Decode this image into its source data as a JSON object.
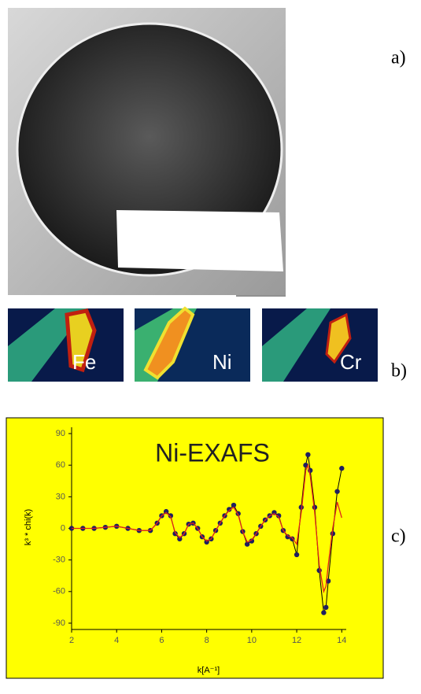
{
  "panel_labels": {
    "a": "a)",
    "b": "b)",
    "c": "c)"
  },
  "maps": [
    "Fe",
    "Ni",
    "Cr"
  ],
  "chart_data": {
    "type": "line",
    "title": "Ni-EXAFS",
    "ylabel": "k³ * chi(k)",
    "xlabel": "k[A⁻¹]",
    "x": [
      2,
      2.5,
      3,
      3.5,
      4,
      4.5,
      5,
      5.5,
      5.8,
      6,
      6.2,
      6.4,
      6.6,
      6.8,
      7,
      7.2,
      7.4,
      7.6,
      7.8,
      8,
      8.2,
      8.4,
      8.6,
      8.8,
      9,
      9.2,
      9.4,
      9.6,
      9.8,
      10,
      10.2,
      10.4,
      10.6,
      10.8,
      11,
      11.2,
      11.4,
      11.6,
      11.8,
      12,
      12.2,
      12.4,
      12.5,
      12.6,
      12.8,
      13,
      13.2,
      13.3,
      13.4,
      13.6,
      13.8,
      14
    ],
    "series": [
      {
        "color": "#1f1f5f",
        "values": [
          0,
          0,
          0,
          1,
          2,
          0,
          -2,
          -2,
          5,
          12,
          16,
          12,
          -5,
          -10,
          -5,
          4,
          5,
          0,
          -8,
          -13,
          -10,
          -2,
          5,
          12,
          18,
          22,
          14,
          -3,
          -15,
          -12,
          -5,
          2,
          8,
          12,
          15,
          12,
          -2,
          -8,
          -10,
          -25,
          20,
          60,
          70,
          55,
          20,
          -40,
          -80,
          -75,
          -50,
          -5,
          35,
          57
        ]
      },
      {
        "color": "#e0241a",
        "values": [
          0,
          0,
          0,
          1,
          2,
          0,
          -2,
          -2,
          5,
          12,
          15,
          11,
          -4,
          -9,
          -5,
          4,
          5,
          0,
          -8,
          -12,
          -10,
          -2,
          5,
          12,
          17,
          20,
          13,
          -3,
          -13,
          -11,
          -5,
          2,
          8,
          12,
          14,
          11,
          -2,
          -7,
          -9,
          -15,
          15,
          55,
          60,
          50,
          15,
          -35,
          -60,
          -55,
          -35,
          0,
          25,
          10
        ]
      }
    ],
    "xlim": [
      2,
      14.2
    ],
    "xticks": [
      2,
      4,
      6,
      8,
      10,
      12,
      14
    ],
    "ylim": [
      -96,
      96
    ],
    "yticks": [
      -90,
      -60,
      -30,
      0,
      30,
      60,
      90
    ]
  }
}
